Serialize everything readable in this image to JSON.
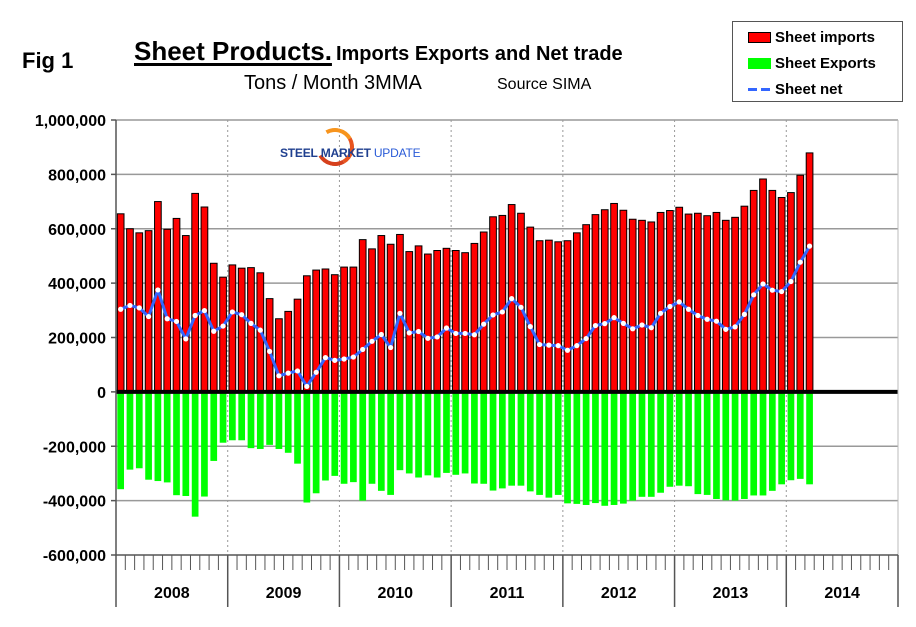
{
  "header": {
    "fig_label": "Fig 1",
    "title_main": "Sheet Products.",
    "title_rest": "Imports Exports and Net trade",
    "subtitle": "Tons / Month 3MMA",
    "source": "Source SIMA"
  },
  "logo": {
    "word1": "STEEL",
    "word2": "MARKET",
    "word3": "UPDATE"
  },
  "legend": {
    "items": [
      {
        "label": "Sheet imports",
        "color": "#ff0000"
      },
      {
        "label": "Sheet Exports",
        "color": "#00ff00"
      },
      {
        "label": "Sheet net",
        "color": "#3366ff"
      }
    ]
  },
  "chart_data": {
    "type": "bar",
    "title": "Sheet Products. Imports Exports and Net trade",
    "subtitle": "Tons / Month 3MMA",
    "source": "Source SIMA",
    "xlabel": "",
    "ylabel": "",
    "ylim": [
      -600000,
      1000000
    ],
    "yticks": [
      -600000,
      -400000,
      -200000,
      0,
      200000,
      400000,
      600000,
      800000,
      1000000
    ],
    "ytick_labels": [
      "-600,000",
      "-400,000",
      "-200,000",
      "0",
      "200,000",
      "400,000",
      "600,000",
      "800,000",
      "1,000,000"
    ],
    "x_years": [
      "2008",
      "2009",
      "2010",
      "2011",
      "2012",
      "2013",
      "2014"
    ],
    "months_per_year": 12,
    "grid": true,
    "legend_position": "top-right",
    "start": "2008-01",
    "series": [
      {
        "name": "Sheet imports",
        "type": "bar",
        "color": "#ff0000",
        "values": [
          655000,
          600000,
          585000,
          593000,
          700000,
          598000,
          638000,
          575000,
          730000,
          680000,
          473000,
          422000,
          467000,
          455000,
          457000,
          438000,
          343000,
          269000,
          296000,
          341000,
          427000,
          448000,
          452000,
          431000,
          459000,
          459000,
          560000,
          526000,
          575000,
          543000,
          579000,
          516000,
          537000,
          507000,
          520000,
          528000,
          520000,
          512000,
          546000,
          588000,
          644000,
          649000,
          689000,
          657000,
          606000,
          556000,
          558000,
          552000,
          556000,
          585000,
          615000,
          652000,
          670000,
          693000,
          668000,
          635000,
          631000,
          625000,
          660000,
          667000,
          679000,
          654000,
          657000,
          648000,
          660000,
          631000,
          642000,
          683000,
          741000,
          783000,
          741000,
          715000,
          733000,
          797000,
          879000
        ]
      },
      {
        "name": "Sheet Exports",
        "type": "bar",
        "color": "#00ff00",
        "values": [
          -358000,
          -286000,
          -281000,
          -323000,
          -328000,
          -333000,
          -380000,
          -383000,
          -459000,
          -385000,
          -254000,
          -187000,
          -178000,
          -178000,
          -207000,
          -210000,
          -195000,
          -210000,
          -224000,
          -264000,
          -407000,
          -373000,
          -326000,
          -309000,
          -338000,
          -332000,
          -400000,
          -338000,
          -364000,
          -379000,
          -288000,
          -300000,
          -315000,
          -307000,
          -315000,
          -298000,
          -305000,
          -300000,
          -337000,
          -338000,
          -363000,
          -355000,
          -345000,
          -345000,
          -366000,
          -379000,
          -389000,
          -379000,
          -410000,
          -412000,
          -416000,
          -409000,
          -419000,
          -416000,
          -411000,
          -400000,
          -386000,
          -386000,
          -371000,
          -349000,
          -345000,
          -347000,
          -376000,
          -379000,
          -394000,
          -399000,
          -400000,
          -394000,
          -381000,
          -381000,
          -364000,
          -340000,
          -325000,
          -320000,
          -340000
        ]
      },
      {
        "name": "Sheet net",
        "type": "line",
        "color": "#3366ff",
        "values": [
          304000,
          318000,
          309000,
          277000,
          375000,
          269000,
          259000,
          195000,
          281000,
          299000,
          223000,
          242000,
          294000,
          284000,
          252000,
          227000,
          149000,
          59000,
          69000,
          77000,
          20000,
          72000,
          126000,
          116000,
          121000,
          128000,
          156000,
          186000,
          211000,
          163000,
          289000,
          217000,
          222000,
          197000,
          202000,
          235000,
          215000,
          215000,
          210000,
          249000,
          283000,
          294000,
          343000,
          311000,
          240000,
          174000,
          172000,
          170000,
          153000,
          170000,
          196000,
          244000,
          251000,
          273000,
          252000,
          232000,
          246000,
          236000,
          289000,
          314000,
          331000,
          304000,
          281000,
          267000,
          260000,
          230000,
          239000,
          285000,
          357000,
          397000,
          374000,
          369000,
          406000,
          477000,
          536000
        ]
      }
    ]
  }
}
